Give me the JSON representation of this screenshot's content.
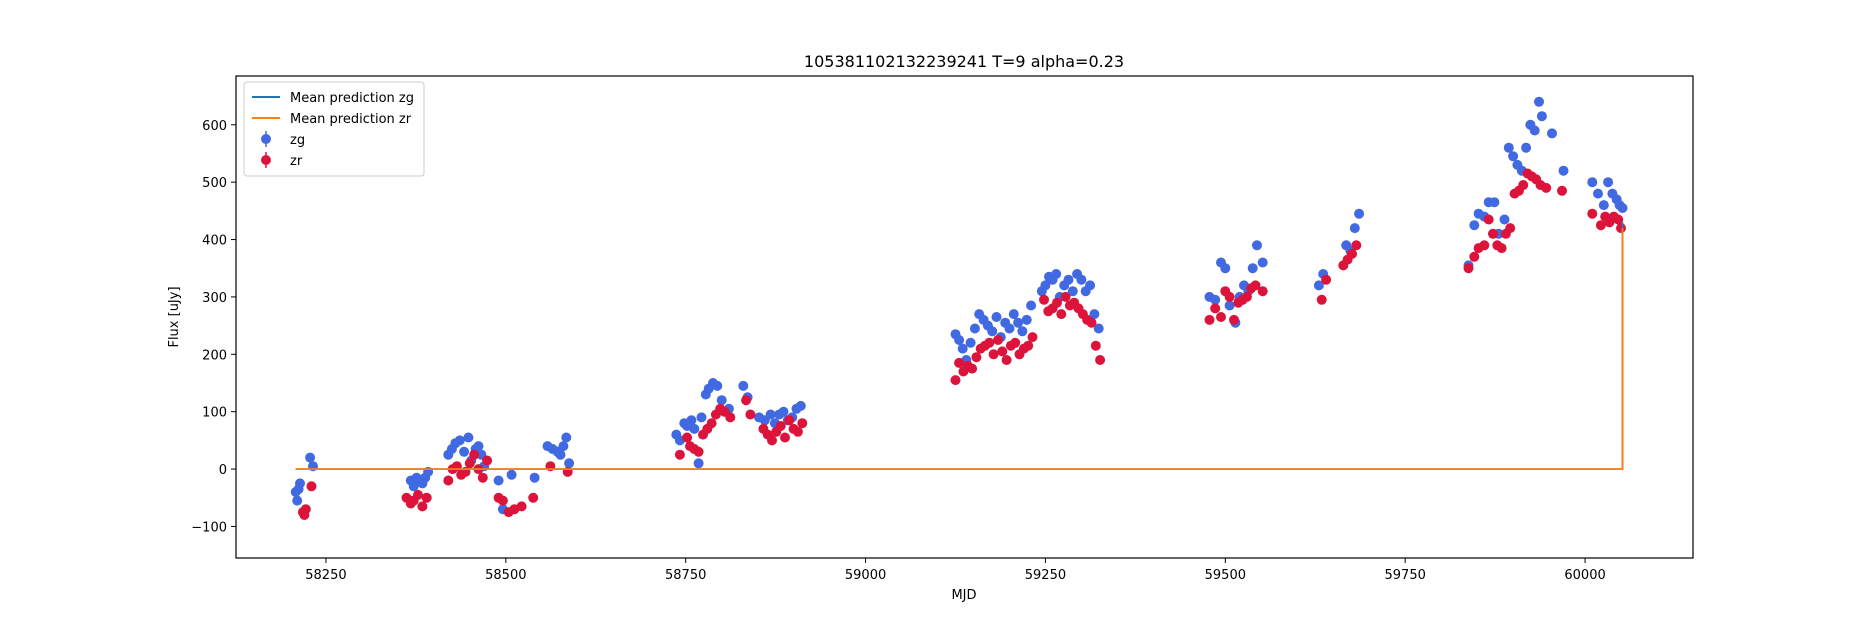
{
  "chart_data": {
    "type": "scatter",
    "title": "105381102132239241 T=9 alpha=0.23",
    "xlabel": "MJD",
    "ylabel": "Flux [uJy]",
    "xlim": [
      58125,
      60150
    ],
    "ylim": [
      -155,
      685
    ],
    "x_ticks": [
      58250,
      58500,
      58750,
      59000,
      59250,
      59500,
      59750,
      60000
    ],
    "y_ticks": [
      -100,
      0,
      100,
      200,
      300,
      400,
      500,
      600
    ],
    "grid": false,
    "legend_position": "top-left",
    "legend": [
      {
        "label": "Mean prediction zg",
        "kind": "line",
        "color": "#1f77b4"
      },
      {
        "label": "Mean prediction zr",
        "kind": "line",
        "color": "#ff7f0e"
      },
      {
        "label": "zg",
        "kind": "errorbar",
        "color": "#4169e1"
      },
      {
        "label": "zr",
        "kind": "errorbar",
        "color": "#dc143c"
      }
    ],
    "lines": [
      {
        "name": "Mean prediction zg",
        "color": "#1f77b4",
        "x": [
          58208,
          60052,
          60052
        ],
        "y": [
          0,
          0,
          430
        ]
      },
      {
        "name": "Mean prediction zr",
        "color": "#ff7f0e",
        "x": [
          58208,
          60052,
          60052
        ],
        "y": [
          0,
          0,
          420
        ]
      }
    ],
    "series": [
      {
        "name": "zg",
        "color": "#4169e1",
        "x": [
          58208,
          58210,
          58212,
          58214,
          58228,
          58232,
          58368,
          58372,
          58376,
          58380,
          58384,
          58388,
          58392,
          58420,
          58425,
          58430,
          58436,
          58442,
          58448,
          58452,
          58458,
          58462,
          58466,
          58470,
          58490,
          58496,
          58508,
          58540,
          58558,
          58565,
          58572,
          58576,
          58580,
          58584,
          58588,
          58737,
          58742,
          58748,
          58752,
          58758,
          58762,
          58768,
          58772,
          58778,
          58782,
          58788,
          58794,
          58800,
          58810,
          58830,
          58836,
          58852,
          58860,
          58868,
          58874,
          58880,
          58886,
          58892,
          58898,
          58904,
          58910,
          59125,
          59130,
          59135,
          59140,
          59146,
          59152,
          59158,
          59164,
          59170,
          59176,
          59182,
          59188,
          59194,
          59200,
          59206,
          59212,
          59218,
          59224,
          59230,
          59245,
          59250,
          59255,
          59260,
          59265,
          59270,
          59276,
          59282,
          59288,
          59294,
          59300,
          59306,
          59312,
          59318,
          59324,
          59478,
          59486,
          59494,
          59500,
          59506,
          59514,
          59520,
          59526,
          59532,
          59538,
          59544,
          59552,
          59630,
          59636,
          59668,
          59674,
          59680,
          59686,
          59838,
          59846,
          59852,
          59860,
          59866,
          59874,
          59880,
          59888,
          59894,
          59900,
          59906,
          59912,
          59918,
          59924,
          59930,
          59936,
          59940,
          59954,
          59970,
          60010,
          60018,
          60026,
          60032,
          60038,
          60044,
          60048,
          60052
        ],
        "y": [
          -40,
          -55,
          -35,
          -25,
          20,
          5,
          -20,
          -30,
          -15,
          -20,
          -25,
          -15,
          -5,
          25,
          35,
          45,
          50,
          30,
          55,
          15,
          35,
          40,
          25,
          5,
          -20,
          -70,
          -10,
          -15,
          40,
          35,
          30,
          25,
          40,
          55,
          10,
          60,
          50,
          80,
          75,
          85,
          70,
          10,
          90,
          130,
          140,
          150,
          145,
          120,
          105,
          145,
          125,
          90,
          85,
          95,
          80,
          95,
          100,
          85,
          90,
          105,
          110,
          235,
          225,
          210,
          190,
          220,
          245,
          270,
          260,
          250,
          240,
          265,
          230,
          255,
          245,
          270,
          255,
          240,
          260,
          285,
          310,
          320,
          335,
          330,
          340,
          300,
          320,
          330,
          310,
          340,
          330,
          310,
          320,
          270,
          245,
          300,
          295,
          360,
          350,
          285,
          255,
          300,
          320,
          310,
          350,
          390,
          360,
          320,
          340,
          390,
          380,
          420,
          445,
          355,
          425,
          445,
          440,
          465,
          465,
          410,
          435,
          560,
          545,
          530,
          520,
          560,
          600,
          590,
          640,
          615,
          585,
          520,
          500,
          480,
          460,
          500,
          480,
          470,
          460,
          455
        ]
      },
      {
        "name": "zr",
        "color": "#dc143c",
        "x": [
          58218,
          58220,
          58222,
          58230,
          58362,
          58368,
          58372,
          58378,
          58384,
          58390,
          58420,
          58426,
          58432,
          58438,
          58444,
          58450,
          58456,
          58462,
          58468,
          58474,
          58490,
          58496,
          58504,
          58512,
          58522,
          58538,
          58562,
          58586,
          58742,
          58752,
          58756,
          58762,
          58768,
          58774,
          58780,
          58786,
          58792,
          58798,
          58804,
          58812,
          58834,
          58840,
          58858,
          58864,
          58870,
          58876,
          58882,
          58888,
          58894,
          58900,
          58906,
          58912,
          59125,
          59130,
          59136,
          59142,
          59148,
          59154,
          59160,
          59166,
          59172,
          59178,
          59184,
          59190,
          59196,
          59202,
          59208,
          59214,
          59220,
          59226,
          59232,
          59248,
          59254,
          59260,
          59266,
          59272,
          59278,
          59284,
          59290,
          59296,
          59302,
          59308,
          59314,
          59320,
          59326,
          59478,
          59486,
          59494,
          59500,
          59506,
          59512,
          59518,
          59524,
          59530,
          59536,
          59542,
          59552,
          59634,
          59640,
          59664,
          59670,
          59676,
          59682,
          59838,
          59846,
          59852,
          59860,
          59866,
          59872,
          59878,
          59884,
          59890,
          59896,
          59902,
          59908,
          59914,
          59920,
          59926,
          59932,
          59938,
          59946,
          59968,
          60010,
          60022,
          60028,
          60034,
          60040,
          60046,
          60050
        ],
        "y": [
          -75,
          -80,
          -70,
          -30,
          -50,
          -60,
          -55,
          -45,
          -65,
          -50,
          -20,
          0,
          5,
          -10,
          -5,
          10,
          25,
          0,
          -15,
          15,
          -50,
          -55,
          -75,
          -70,
          -65,
          -50,
          5,
          -5,
          25,
          55,
          40,
          35,
          30,
          60,
          70,
          80,
          95,
          105,
          100,
          90,
          120,
          95,
          70,
          60,
          50,
          65,
          75,
          55,
          85,
          70,
          65,
          80,
          155,
          185,
          170,
          180,
          175,
          195,
          210,
          215,
          220,
          200,
          225,
          205,
          190,
          215,
          220,
          200,
          210,
          215,
          230,
          295,
          275,
          280,
          290,
          270,
          300,
          285,
          290,
          280,
          270,
          260,
          255,
          215,
          190,
          260,
          280,
          265,
          310,
          300,
          260,
          290,
          295,
          300,
          315,
          320,
          310,
          295,
          330,
          355,
          365,
          375,
          390,
          350,
          370,
          385,
          390,
          435,
          410,
          390,
          385,
          410,
          420,
          480,
          485,
          495,
          515,
          510,
          505,
          495,
          490,
          485,
          445,
          425,
          440,
          430,
          440,
          435,
          420
        ]
      }
    ]
  }
}
